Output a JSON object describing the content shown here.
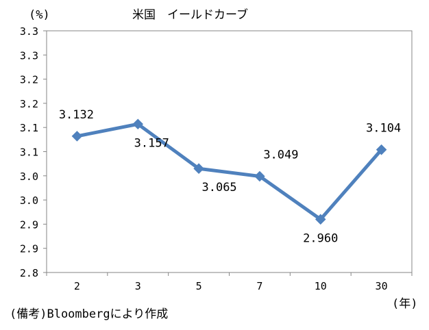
{
  "chart_data": {
    "type": "line",
    "title": "米国　イールドカーブ",
    "ylabel": "(%)",
    "xlabel": "(年)",
    "categories": [
      "2",
      "3",
      "5",
      "7",
      "10",
      "30"
    ],
    "series": [
      {
        "values": [
          3.132,
          3.157,
          3.065,
          3.049,
          2.96,
          3.104
        ],
        "labels": [
          "3.132",
          "3.157",
          "3.065",
          "3.049",
          "2.960",
          "3.104"
        ],
        "color": "#4f81bd"
      }
    ],
    "ylim": [
      2.85,
      3.35
    ],
    "yticks": [
      2.85,
      2.9,
      2.95,
      3.0,
      3.05,
      3.1,
      3.15,
      3.2,
      3.25,
      3.3,
      3.35
    ],
    "ytick_labels": [
      "2.8",
      "2.9",
      "2.9",
      "3.0",
      "3.0",
      "3.1",
      "3.1",
      "3.2",
      "3.2",
      "3.3",
      "3.3"
    ],
    "grid": false,
    "source": "(備考)Bloombergにより作成"
  }
}
